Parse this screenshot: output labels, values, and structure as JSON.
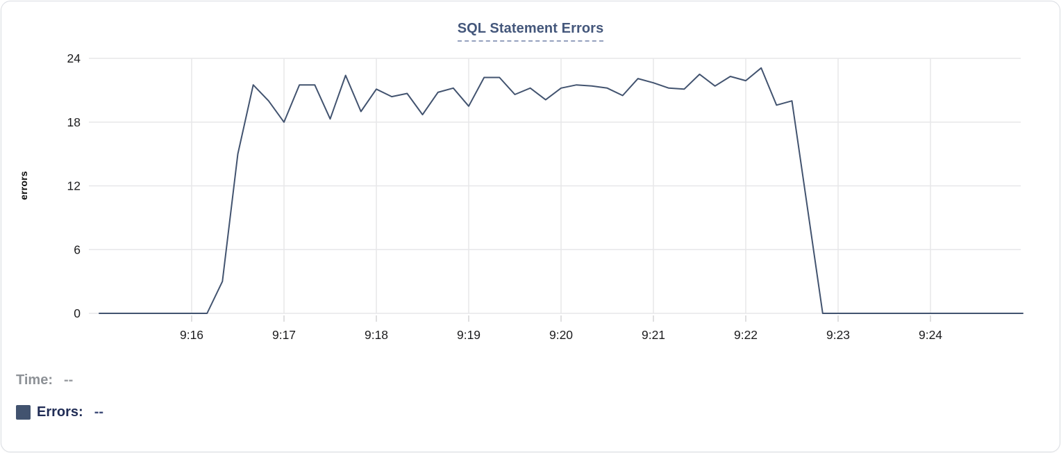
{
  "card": {
    "background": "#ffffff",
    "border_color": "#dadde2"
  },
  "chart_data": {
    "type": "line",
    "title": "SQL Statement Errors",
    "xlabel": "",
    "ylabel": "errors",
    "ylim": [
      0,
      24
    ],
    "yticks": [
      0,
      6,
      12,
      18,
      24
    ],
    "xticks": [
      "9:16",
      "9:17",
      "9:18",
      "9:19",
      "9:20",
      "9:21",
      "9:22",
      "9:23",
      "9:24"
    ],
    "x_range": [
      "9:15:00",
      "9:25:00"
    ],
    "grid": "on",
    "legend_position": "bottom-left",
    "colors": {
      "line": "#42536F",
      "grid": "#e7e7e9",
      "tick": "#d4d4d6",
      "tick_label": "#1b1b1d",
      "title": "#44577b",
      "title_underline": "#94a0bd"
    },
    "series": [
      {
        "name": "Errors",
        "color": "#42536F",
        "x": [
          "9:15:00",
          "9:15:10",
          "9:15:20",
          "9:15:30",
          "9:15:40",
          "9:15:50",
          "9:16:00",
          "9:16:10",
          "9:16:20",
          "9:16:30",
          "9:16:40",
          "9:16:50",
          "9:17:00",
          "9:17:10",
          "9:17:20",
          "9:17:30",
          "9:17:40",
          "9:17:50",
          "9:18:00",
          "9:18:10",
          "9:18:20",
          "9:18:30",
          "9:18:40",
          "9:18:50",
          "9:19:00",
          "9:19:10",
          "9:19:20",
          "9:19:30",
          "9:19:40",
          "9:19:50",
          "9:20:00",
          "9:20:10",
          "9:20:20",
          "9:20:30",
          "9:20:40",
          "9:20:50",
          "9:21:00",
          "9:21:10",
          "9:21:20",
          "9:21:30",
          "9:21:40",
          "9:21:50",
          "9:22:00",
          "9:22:10",
          "9:22:20",
          "9:22:30",
          "9:22:40",
          "9:22:50",
          "9:23:00",
          "9:23:10",
          "9:23:20",
          "9:23:30",
          "9:23:40",
          "9:23:50",
          "9:24:00",
          "9:24:10",
          "9:24:20",
          "9:24:30",
          "9:24:40",
          "9:24:50",
          "9:25:00"
        ],
        "values": [
          0,
          0,
          0,
          0,
          0,
          0,
          0,
          0,
          3,
          15,
          21.5,
          20,
          18,
          21.5,
          21.5,
          18.3,
          22.4,
          19,
          21.1,
          20.4,
          20.7,
          18.7,
          20.8,
          21.2,
          19.5,
          22.2,
          22.2,
          20.6,
          21.2,
          20.1,
          21.2,
          21.5,
          21.4,
          21.2,
          20.5,
          22.1,
          21.7,
          21.2,
          21.1,
          22.5,
          21.4,
          22.3,
          21.9,
          23.1,
          19.6,
          20,
          10,
          0,
          0,
          0,
          0,
          0,
          0,
          0,
          0,
          0,
          0,
          0,
          0,
          0,
          0
        ]
      }
    ]
  },
  "readout": {
    "time_label": "Time:",
    "time_value": "--",
    "errors_label": "Errors:",
    "errors_value": "--",
    "swatch_color": "#42536F"
  }
}
